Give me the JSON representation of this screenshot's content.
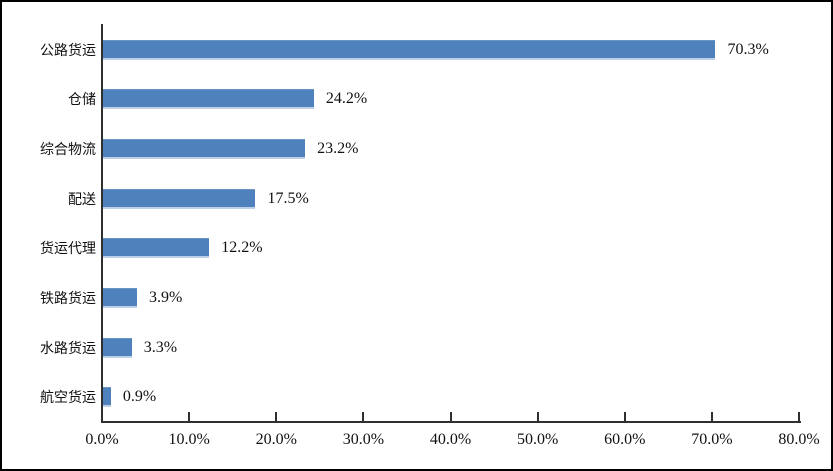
{
  "chart_data": {
    "type": "bar",
    "orientation": "horizontal",
    "title": "",
    "xlabel": "",
    "ylabel": "",
    "categories": [
      "公路货运",
      "仓储",
      "综合物流",
      "配送",
      "货运代理",
      "铁路货运",
      "水路货运",
      "航空货运"
    ],
    "values": [
      70.3,
      24.2,
      23.2,
      17.5,
      12.2,
      3.9,
      3.3,
      0.9
    ],
    "value_labels": [
      "70.3%",
      "24.2%",
      "23.2%",
      "17.5%",
      "12.2%",
      "3.9%",
      "3.3%",
      "0.9%"
    ],
    "xlim": [
      0,
      80
    ],
    "x_tick_values": [
      0,
      10,
      20,
      30,
      40,
      50,
      60,
      70,
      80
    ],
    "x_tick_labels": [
      "0.0%",
      "10.0%",
      "20.0%",
      "30.0%",
      "40.0%",
      "50.0%",
      "60.0%",
      "70.0%",
      "80.0%"
    ],
    "grid": false,
    "legend": false,
    "bar_color": "#4f81bd",
    "bar_edge_color": "#bcd0e8",
    "axis_color": "#2f2f2f",
    "text_color": "#111111",
    "background_color": "#ffffff",
    "border_color": "#000000"
  }
}
